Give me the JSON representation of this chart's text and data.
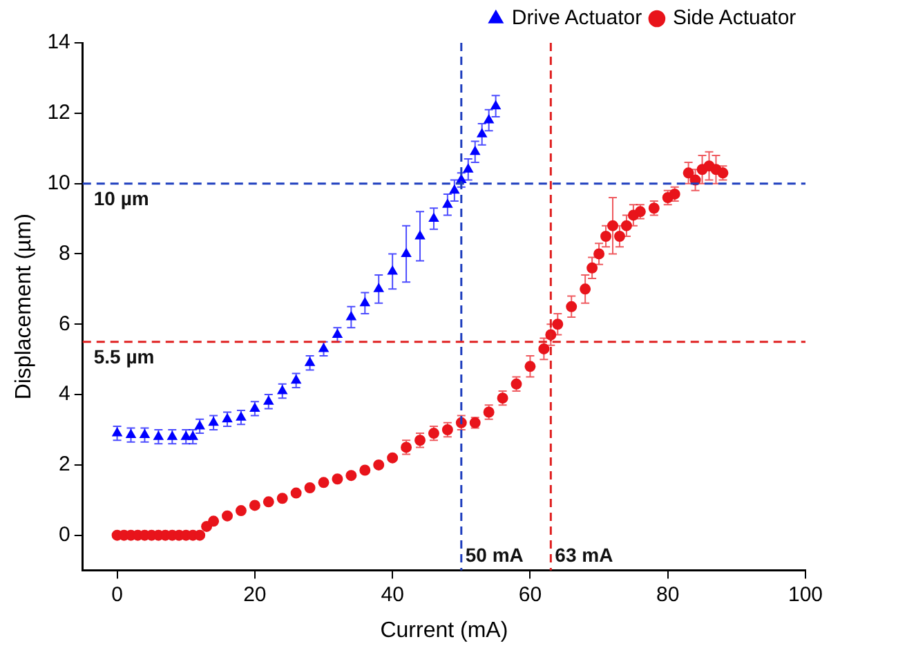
{
  "chart_data": {
    "type": "scatter",
    "xlabel": "Current (mA)",
    "ylabel": "Displacement (µm)",
    "xlim": [
      -5,
      100
    ],
    "xticks": [
      0,
      20,
      40,
      60,
      80,
      100
    ],
    "ylim": [
      -1,
      14
    ],
    "yticks": [
      0,
      2,
      4,
      6,
      8,
      10,
      12,
      14
    ],
    "grid": false,
    "legend": "top right",
    "series": [
      {
        "name": "Drive Actuator",
        "color": "#0000ff",
        "marker": "triangle",
        "x": [
          0,
          2,
          4,
          6,
          8,
          10,
          11,
          12,
          14,
          16,
          18,
          20,
          22,
          24,
          26,
          28,
          30,
          32,
          34,
          36,
          38,
          40,
          42,
          44,
          46,
          48,
          49,
          50,
          51,
          52,
          53,
          54,
          55
        ],
        "values": [
          2.9,
          2.85,
          2.85,
          2.8,
          2.8,
          2.8,
          2.8,
          3.1,
          3.2,
          3.3,
          3.35,
          3.6,
          3.8,
          4.1,
          4.4,
          4.9,
          5.3,
          5.7,
          6.2,
          6.6,
          7.0,
          7.5,
          8.0,
          8.5,
          9.0,
          9.4,
          9.8,
          10.1,
          10.4,
          10.9,
          11.4,
          11.8,
          12.2
        ],
        "errors": [
          0.2,
          0.2,
          0.2,
          0.2,
          0.2,
          0.2,
          0.2,
          0.2,
          0.2,
          0.2,
          0.2,
          0.2,
          0.2,
          0.2,
          0.2,
          0.2,
          0.2,
          0.2,
          0.3,
          0.3,
          0.4,
          0.5,
          0.8,
          0.7,
          0.3,
          0.3,
          0.3,
          0.2,
          0.3,
          0.3,
          0.3,
          0.3,
          0.3
        ]
      },
      {
        "name": "Side Actuator",
        "color": "#e8141b",
        "marker": "circle",
        "x": [
          0,
          1,
          2,
          3,
          4,
          5,
          6,
          7,
          8,
          9,
          10,
          11,
          12,
          13,
          14,
          16,
          18,
          20,
          22,
          24,
          26,
          28,
          30,
          32,
          34,
          36,
          38,
          40,
          42,
          44,
          46,
          48,
          50,
          52,
          54,
          56,
          58,
          60,
          62,
          63,
          64,
          66,
          68,
          69,
          70,
          71,
          72,
          73,
          74,
          75,
          76,
          78,
          80,
          81,
          83,
          84,
          85,
          86,
          87,
          88
        ],
        "values": [
          0,
          0,
          0,
          0,
          0,
          0,
          0,
          0,
          0,
          0,
          0,
          0,
          0,
          0.25,
          0.4,
          0.55,
          0.7,
          0.85,
          0.95,
          1.05,
          1.2,
          1.35,
          1.5,
          1.6,
          1.7,
          1.85,
          2.0,
          2.2,
          2.5,
          2.7,
          2.9,
          3.0,
          3.2,
          3.2,
          3.5,
          3.9,
          4.3,
          4.8,
          5.3,
          5.7,
          6.0,
          6.5,
          7.0,
          7.6,
          8.0,
          8.5,
          8.8,
          8.5,
          8.8,
          9.1,
          9.2,
          9.3,
          9.6,
          9.7,
          10.3,
          10.1,
          10.4,
          10.5,
          10.4,
          10.3
        ],
        "errors": [
          null,
          null,
          null,
          null,
          null,
          null,
          null,
          null,
          null,
          null,
          null,
          null,
          null,
          null,
          null,
          null,
          null,
          null,
          null,
          null,
          null,
          null,
          null,
          null,
          null,
          null,
          null,
          null,
          0.2,
          0.2,
          0.2,
          0.2,
          0.2,
          0.15,
          0.2,
          0.2,
          0.2,
          0.3,
          0.3,
          0.3,
          0.3,
          0.3,
          0.4,
          0.3,
          0.3,
          0.3,
          0.8,
          0.3,
          0.3,
          0.3,
          0.2,
          0.2,
          0.2,
          0.2,
          0.3,
          0.3,
          0.4,
          0.4,
          0.4,
          0.2
        ]
      }
    ],
    "ref_lines": [
      {
        "axis": "x",
        "value": 50,
        "label": "50 mA",
        "color": "#1f3fbf",
        "line_style": "dashed"
      },
      {
        "axis": "x",
        "value": 63,
        "label": "63 mA",
        "color": "#e02020",
        "line_style": "dashed"
      },
      {
        "axis": "y",
        "value": 10,
        "label": "10 µm",
        "color": "#1f3fbf",
        "line_style": "dashed"
      },
      {
        "axis": "y",
        "value": 5.5,
        "label": "5.5 µm",
        "color": "#e02020",
        "line_style": "dashed"
      }
    ]
  }
}
